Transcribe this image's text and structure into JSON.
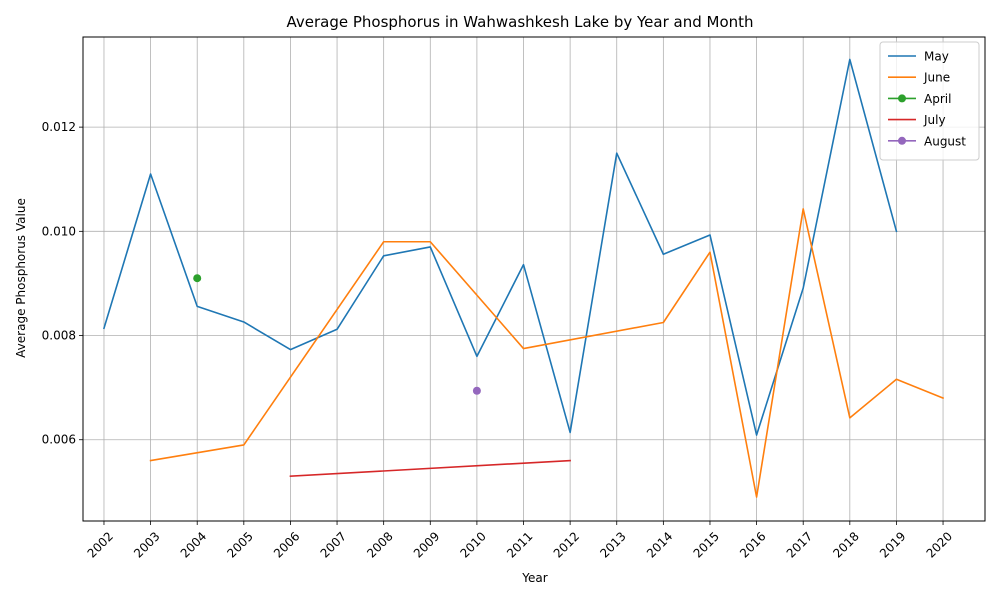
{
  "chart_data": {
    "type": "line",
    "title": "Average Phosphorus in Wahwashkesh Lake by Year and Month",
    "xlabel": "Year",
    "ylabel": "Average Phosphorus Value",
    "x_ticks": [
      "2002",
      "2003",
      "2004",
      "2005",
      "2006",
      "2007",
      "2008",
      "2009",
      "2010",
      "2011",
      "2012",
      "2013",
      "2014",
      "2015",
      "2016",
      "2017",
      "2018",
      "2019",
      "2020"
    ],
    "xlim": [
      2001.55,
      2020.9
    ],
    "ylim": [
      0.00444,
      0.01373
    ],
    "y_ticks": [
      "0.006",
      "0.008",
      "0.010",
      "0.012"
    ],
    "y_tick_values": [
      0.006,
      0.008,
      0.01,
      0.012
    ],
    "grid": true,
    "legend_position": "top-right",
    "series": [
      {
        "name": "May",
        "color": "#1f77b4",
        "marker": false,
        "x": [
          2002,
          2003,
          2004,
          2005,
          2006,
          2007,
          2008,
          2009,
          2010,
          2011,
          2012,
          2013,
          2014,
          2015,
          2016,
          2017,
          2018,
          2019
        ],
        "y": [
          0.00814,
          0.0111,
          0.00856,
          0.00826,
          0.00773,
          0.00812,
          0.00953,
          0.0097,
          0.0076,
          0.00936,
          0.00614,
          0.0115,
          0.00956,
          0.00993,
          0.00609,
          0.00891,
          0.0133,
          0.01
        ]
      },
      {
        "name": "June",
        "color": "#ff7f0e",
        "marker": false,
        "x": [
          2003,
          2005,
          2008,
          2009,
          2011,
          2014,
          2015,
          2016,
          2017,
          2018,
          2019,
          2020
        ],
        "y": [
          0.0056,
          0.0059,
          0.0098,
          0.0098,
          0.00775,
          0.00825,
          0.0096,
          0.0049,
          0.01043,
          0.00642,
          0.00716,
          0.0068
        ]
      },
      {
        "name": "April",
        "color": "#2ca02c",
        "marker": true,
        "x": [
          2004
        ],
        "y": [
          0.0091
        ]
      },
      {
        "name": "July",
        "color": "#d62728",
        "marker": false,
        "x": [
          2006,
          2012
        ],
        "y": [
          0.0053,
          0.0056
        ]
      },
      {
        "name": "August",
        "color": "#9467bd",
        "marker": true,
        "x": [
          2010
        ],
        "y": [
          0.00694
        ]
      }
    ]
  }
}
